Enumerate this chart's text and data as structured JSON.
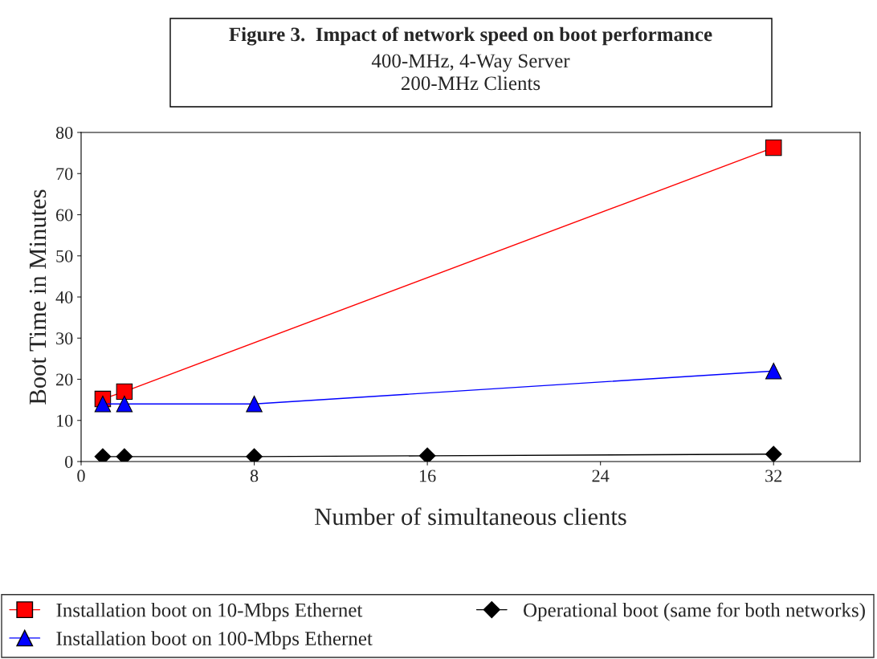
{
  "chart_data": {
    "type": "line",
    "title": "Figure 3.  Impact of network speed on boot performance",
    "subtitle": "400-MHz, 4-Way Server\n200-MHz Clients",
    "xlabel": "Number of simultaneous clients",
    "ylabel": "Boot Time in Minutes",
    "series": [
      {
        "name": "Installation boot on 10-Mbps Ethernet",
        "color": "#ff0000",
        "marker": "square",
        "x": [
          1,
          2,
          32
        ],
        "values": [
          15.2,
          17,
          76.3
        ]
      },
      {
        "name": "Installation boot on 100-Mbps Ethernet",
        "color": "#0000ff",
        "marker": "triangle",
        "x": [
          1,
          2,
          8,
          32
        ],
        "values": [
          14,
          14,
          14,
          22
        ]
      },
      {
        "name": "Operational boot (same for both networks)",
        "color": "#000000",
        "marker": "diamond",
        "x": [
          1,
          2,
          8,
          16,
          32
        ],
        "values": [
          1.2,
          1.2,
          1.2,
          1.4,
          1.8
        ]
      }
    ],
    "xlim": [
      0,
      36
    ],
    "xticks": [
      0,
      8,
      16,
      24,
      32
    ],
    "ylim": [
      0,
      80
    ],
    "yticks": [
      0,
      10,
      20,
      30,
      40,
      50,
      60,
      70,
      80
    ],
    "grid": false,
    "legend": "bottom",
    "line_style": "solid"
  }
}
